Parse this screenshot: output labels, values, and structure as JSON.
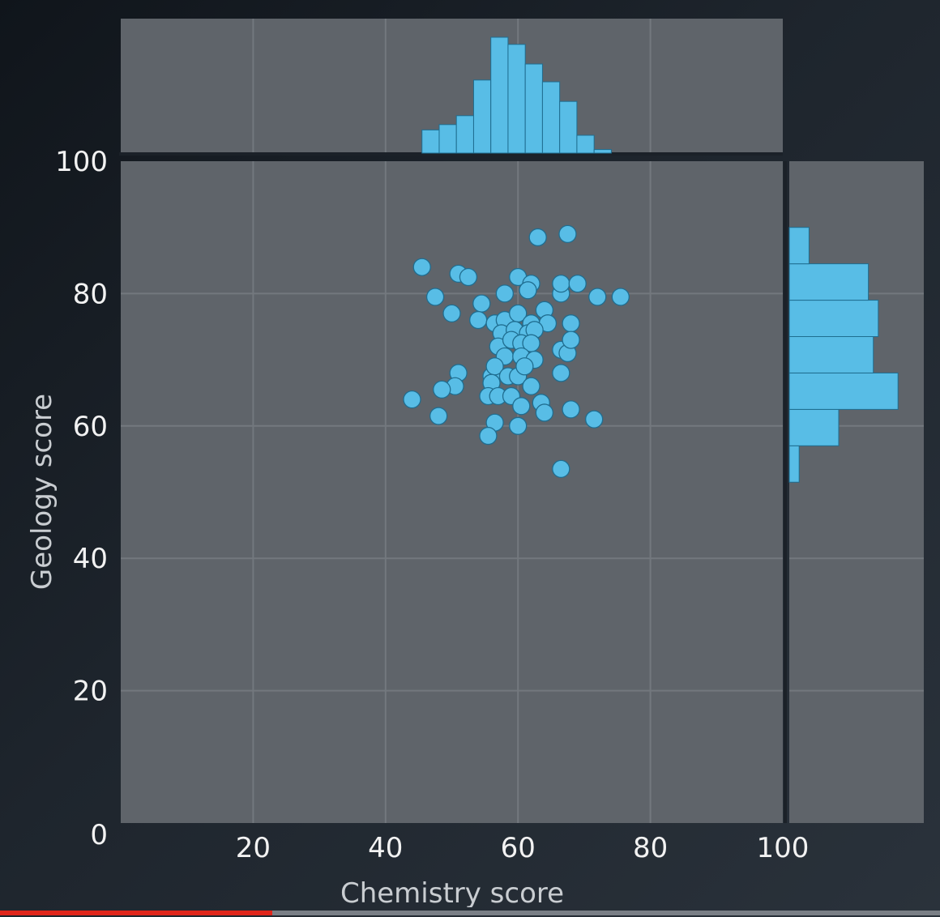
{
  "chart_data": {
    "type": "scatter",
    "xlabel": "Chemistry score",
    "ylabel": "Geology score",
    "xlim": [
      0,
      100
    ],
    "ylim": [
      0,
      100
    ],
    "x_ticks": [
      "20",
      "40",
      "60",
      "80",
      "100"
    ],
    "y_ticks": [
      "0",
      "20",
      "40",
      "60",
      "80",
      "100"
    ],
    "grid": true,
    "colors": {
      "marker": "#58bde6",
      "marker_edge": "#1f6d90",
      "panel": "#5f646a",
      "grid": "#73787e",
      "text": "#f2f2f2"
    },
    "points": [
      [
        45.5,
        84
      ],
      [
        51,
        83
      ],
      [
        52.5,
        82.5
      ],
      [
        63,
        88.5
      ],
      [
        67.5,
        89
      ],
      [
        47.5,
        79.5
      ],
      [
        50,
        77
      ],
      [
        54.5,
        78.5
      ],
      [
        54,
        76
      ],
      [
        58,
        80
      ],
      [
        60,
        82.5
      ],
      [
        62,
        81.5
      ],
      [
        61.5,
        80.5
      ],
      [
        66.5,
        80
      ],
      [
        66.5,
        81.5
      ],
      [
        69,
        81.5
      ],
      [
        72,
        79.5
      ],
      [
        75.5,
        79.5
      ],
      [
        56.5,
        75.5
      ],
      [
        58,
        76
      ],
      [
        60,
        77
      ],
      [
        62,
        75.5
      ],
      [
        64,
        77.5
      ],
      [
        64.5,
        75.5
      ],
      [
        68,
        75.5
      ],
      [
        57.5,
        74
      ],
      [
        59.5,
        74.5
      ],
      [
        61.5,
        74
      ],
      [
        62.5,
        74.5
      ],
      [
        57,
        72
      ],
      [
        59,
        73
      ],
      [
        60.5,
        72.5
      ],
      [
        62,
        72.5
      ],
      [
        58,
        70.5
      ],
      [
        60.5,
        70.5
      ],
      [
        62.5,
        70
      ],
      [
        66.5,
        71.5
      ],
      [
        67.5,
        71
      ],
      [
        68,
        73
      ],
      [
        51,
        68
      ],
      [
        56,
        67.5
      ],
      [
        56.5,
        69
      ],
      [
        58.5,
        67.5
      ],
      [
        60,
        67.5
      ],
      [
        61,
        69
      ],
      [
        66.5,
        68
      ],
      [
        50.5,
        66
      ],
      [
        48.5,
        65.5
      ],
      [
        44,
        64
      ],
      [
        56,
        66.5
      ],
      [
        55.5,
        64.5
      ],
      [
        57,
        64.5
      ],
      [
        59,
        64.5
      ],
      [
        60.5,
        63
      ],
      [
        62,
        66
      ],
      [
        63.5,
        63.5
      ],
      [
        64,
        62
      ],
      [
        68,
        62.5
      ],
      [
        71.5,
        61
      ],
      [
        48,
        61.5
      ],
      [
        56.5,
        60.5
      ],
      [
        60,
        60
      ],
      [
        55.5,
        58.5
      ],
      [
        66.5,
        53.5
      ]
    ],
    "top_histogram": {
      "bin_start": 45.5,
      "bin_width": 2.6,
      "counts": [
        1.3,
        1.6,
        2.1,
        4.1,
        6.5,
        6.1,
        5.0,
        4.0,
        2.9,
        1.0,
        0.2
      ]
    },
    "right_histogram": {
      "bin_start": 51.5,
      "bin_width": 5.5,
      "counts": [
        1,
        5,
        11,
        8.5,
        9,
        8,
        2
      ]
    }
  },
  "video": {
    "progress": 0.29
  }
}
